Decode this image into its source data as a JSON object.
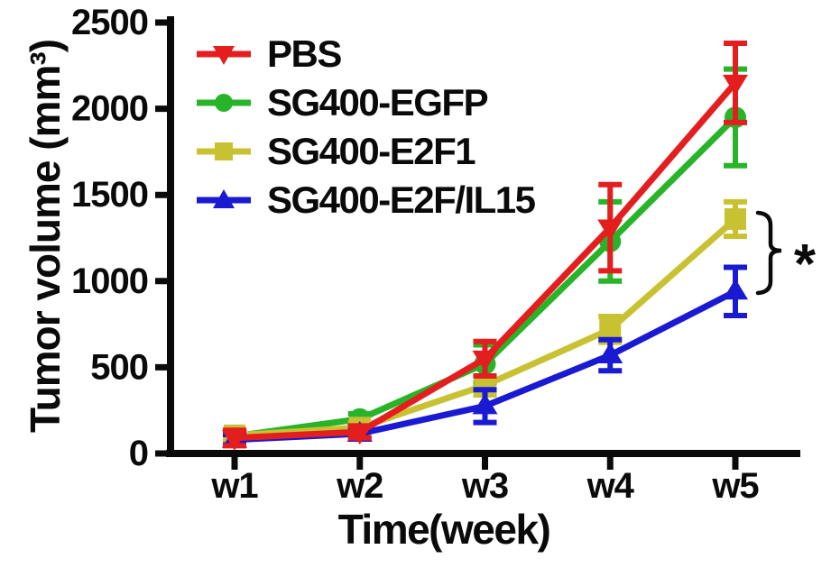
{
  "figure": {
    "background": "#ffffff"
  },
  "chart_data": {
    "type": "line",
    "title": "",
    "xlabel": "Time(week)",
    "ylabel": "Tumor volume (mm³)",
    "categories": [
      "w1",
      "w2",
      "w3",
      "w4",
      "w5"
    ],
    "ylim": [
      0,
      2500
    ],
    "yticks": [
      0,
      500,
      1000,
      1500,
      2000,
      2500
    ],
    "grid": false,
    "legend_position": "top-left-inside",
    "axis_color": "#0a0a0a",
    "series": [
      {
        "name": "PBS",
        "color": "#e41e1e",
        "marker": "triangle-down",
        "values": [
          90,
          125,
          550,
          1310,
          2150
        ],
        "errors": [
          45,
          35,
          100,
          250,
          230
        ]
      },
      {
        "name": "SG400-EGFP",
        "color": "#28b428",
        "marker": "circle",
        "values": [
          100,
          200,
          520,
          1230,
          1950
        ],
        "errors": [
          25,
          30,
          110,
          230,
          280
        ]
      },
      {
        "name": "SG400-E2F1",
        "color": "#c8c232",
        "marker": "square",
        "values": [
          105,
          150,
          395,
          720,
          1360
        ],
        "errors": [
          30,
          25,
          55,
          75,
          100
        ]
      },
      {
        "name": "SG400-E2F/IL15",
        "color": "#1a1ad2",
        "marker": "triangle-up",
        "values": [
          80,
          115,
          275,
          570,
          940
        ],
        "errors": [
          30,
          25,
          95,
          90,
          140
        ]
      }
    ],
    "annotation": {
      "text": "*",
      "between": [
        "SG400-E2F1",
        "SG400-E2F/IL15"
      ],
      "at": "w5",
      "side": "right"
    }
  }
}
